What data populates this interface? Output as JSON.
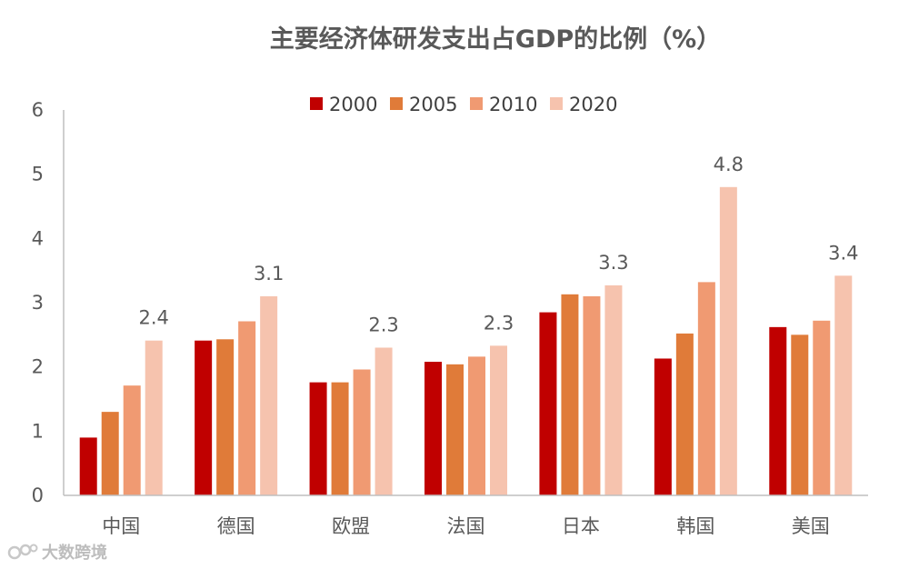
{
  "chart_data": {
    "type": "bar",
    "title": "主要经济体研发支出占GDP的比例（%）",
    "categories": [
      "中国",
      "德国",
      "欧盟",
      "法国",
      "日本",
      "韩国",
      "美国"
    ],
    "series": [
      {
        "name": "2000",
        "color": "#c00000",
        "values": [
          0.9,
          2.41,
          1.76,
          2.08,
          2.85,
          2.13,
          2.62
        ]
      },
      {
        "name": "2005",
        "color": "#e07b39",
        "values": [
          1.3,
          2.43,
          1.76,
          2.04,
          3.13,
          2.52,
          2.5
        ]
      },
      {
        "name": "2010",
        "color": "#f09a72",
        "values": [
          1.71,
          2.71,
          1.96,
          2.16,
          3.1,
          3.32,
          2.72
        ]
      },
      {
        "name": "2020",
        "color": "#f6c3ae",
        "values": [
          2.41,
          3.1,
          2.3,
          2.33,
          3.27,
          4.8,
          3.42
        ]
      }
    ],
    "data_labels": {
      "series": "2020",
      "labels": [
        "2.4",
        "3.1",
        "2.3",
        "2.3",
        "3.3",
        "4.8",
        "3.4"
      ]
    },
    "ylim": [
      0,
      6
    ],
    "yticks": [
      "0",
      "1",
      "2",
      "3",
      "4",
      "5",
      "6"
    ],
    "legend_position": "top",
    "grid": false,
    "xlabel": "",
    "ylabel": ""
  },
  "watermark": {
    "text": "大数跨境",
    "icon": "logo-icon"
  }
}
